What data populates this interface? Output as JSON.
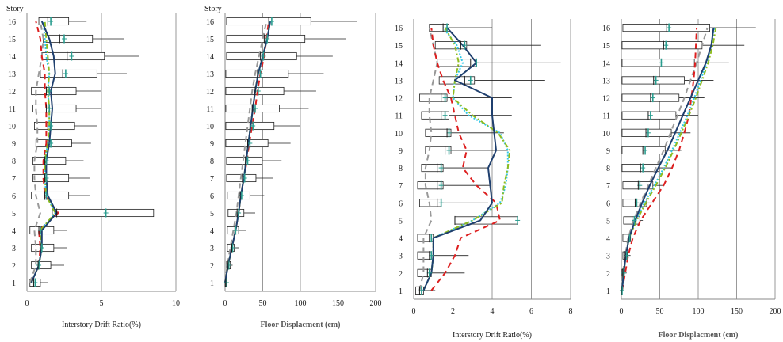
{
  "chart_data": [
    {
      "type": "box-profile",
      "story_label": "Story",
      "xlabel": "Interstory Drift Ratio(%)",
      "xlabel_style": "normal",
      "xlim": [
        0,
        10
      ],
      "xticks": [
        0,
        5,
        10
      ],
      "stories": [
        1,
        2,
        3,
        4,
        5,
        6,
        7,
        8,
        9,
        10,
        11,
        12,
        13,
        14,
        15,
        16
      ],
      "boxes": [
        {
          "story": 1,
          "q1": 0.2,
          "q3": 0.9,
          "whisker": 1.4
        },
        {
          "story": 2,
          "q1": 0.3,
          "q3": 1.6,
          "whisker": 2.5
        },
        {
          "story": 3,
          "q1": 0.3,
          "q3": 1.8,
          "whisker": 2.7
        },
        {
          "story": 4,
          "q1": 0.2,
          "q3": 1.8,
          "whisker": 2.7
        },
        {
          "story": 5,
          "q1": 1.7,
          "q3": 8.5,
          "whisker": 8.5
        },
        {
          "story": 6,
          "q1": 0.3,
          "q3": 2.8,
          "whisker": 4.2
        },
        {
          "story": 7,
          "q1": 0.4,
          "q3": 2.8,
          "whisker": 4.2
        },
        {
          "story": 8,
          "q1": 0.4,
          "q3": 2.6,
          "whisker": 3.8
        },
        {
          "story": 9,
          "q1": 0.6,
          "q3": 3.0,
          "whisker": 4.3
        },
        {
          "story": 10,
          "q1": 0.5,
          "q3": 3.2,
          "whisker": 4.7
        },
        {
          "story": 11,
          "q1": 0.4,
          "q3": 3.3,
          "whisker": 5.0
        },
        {
          "story": 12,
          "q1": 0.3,
          "q3": 3.3,
          "whisker": 5.0
        },
        {
          "story": 13,
          "q1": 0.9,
          "q3": 4.7,
          "whisker": 6.7
        },
        {
          "story": 14,
          "q1": 1.0,
          "q3": 5.2,
          "whisker": 7.5
        },
        {
          "story": 15,
          "q1": 1.1,
          "q3": 4.4,
          "whisker": 6.5
        },
        {
          "story": 16,
          "q1": 0.8,
          "q3": 2.8,
          "whisker": 4.0
        }
      ],
      "mean_markers": [
        0.55,
        0.8,
        1.0,
        0.9,
        5.3,
        1.3,
        1.3,
        1.3,
        1.6,
        1.6,
        1.5,
        1.5,
        2.6,
        3.0,
        2.5,
        1.6
      ],
      "median_markers": [
        0.45,
        0.75,
        0.9,
        0.8,
        2.0,
        1.2,
        1.2,
        1.2,
        1.4,
        1.4,
        1.3,
        1.3,
        2.4,
        2.7,
        2.2,
        1.4
      ],
      "series": [
        {
          "color": "#1f3f6e",
          "dash": "solid",
          "width": 2,
          "values": [
            0.3,
            0.8,
            1.0,
            1.0,
            2.0,
            1.4,
            1.3,
            1.3,
            1.5,
            1.6,
            1.7,
            1.6,
            1.9,
            1.8,
            1.5,
            1.0
          ]
        },
        {
          "color": "#8fbc1e",
          "dash": "6,3,2,3",
          "width": 2,
          "values": [
            0.3,
            0.8,
            1.0,
            0.9,
            1.9,
            1.3,
            1.2,
            1.2,
            1.4,
            1.5,
            1.5,
            1.4,
            1.5,
            1.4,
            1.3,
            1.2
          ]
        },
        {
          "color": "#33c8e8",
          "dash": "2,2",
          "width": 2,
          "values": [
            0.3,
            0.8,
            1.0,
            0.9,
            1.9,
            1.3,
            1.2,
            1.2,
            1.4,
            1.5,
            1.5,
            1.4,
            1.5,
            1.3,
            1.2,
            1.1
          ]
        },
        {
          "color": "#dd1f1f",
          "dash": "7,5",
          "width": 2,
          "values": [
            0.3,
            0.8,
            0.9,
            0.8,
            2.1,
            1.2,
            1.1,
            1.1,
            1.3,
            1.3,
            1.3,
            1.2,
            1.2,
            1.0,
            0.9,
            0.6
          ]
        },
        {
          "color": "#999999",
          "dash": "7,5",
          "width": 2,
          "values": [
            0.2,
            0.6,
            0.6,
            0.5,
            0.9,
            0.6,
            0.5,
            0.5,
            0.7,
            0.7,
            0.6,
            0.6,
            0.8,
            1.0,
            1.1,
            0.9
          ]
        }
      ]
    },
    {
      "type": "box-profile",
      "story_label": "Story",
      "xlabel": "Floor Displacment (cm)",
      "xlabel_style": "bold",
      "xlim": [
        0,
        200
      ],
      "xticks": [
        0,
        50,
        100,
        150,
        200
      ],
      "stories": [
        1,
        2,
        3,
        4,
        5,
        6,
        7,
        8,
        9,
        10,
        11,
        12,
        13,
        14,
        15,
        16
      ],
      "boxes": [
        {
          "story": 1,
          "q1": 0,
          "q3": 1,
          "whisker": 2
        },
        {
          "story": 2,
          "q1": 2,
          "q3": 7,
          "whisker": 10
        },
        {
          "story": 3,
          "q1": 3,
          "q3": 12,
          "whisker": 18
        },
        {
          "story": 4,
          "q1": 3,
          "q3": 18,
          "whisker": 28
        },
        {
          "story": 5,
          "q1": 4,
          "q3": 25,
          "whisker": 40
        },
        {
          "story": 6,
          "q1": 3,
          "q3": 33,
          "whisker": 52
        },
        {
          "story": 7,
          "q1": 2,
          "q3": 41,
          "whisker": 64
        },
        {
          "story": 8,
          "q1": 2,
          "q3": 49,
          "whisker": 75
        },
        {
          "story": 9,
          "q1": 1,
          "q3": 57,
          "whisker": 87
        },
        {
          "story": 10,
          "q1": 1,
          "q3": 65,
          "whisker": 99
        },
        {
          "story": 11,
          "q1": 1,
          "q3": 72,
          "whisker": 111
        },
        {
          "story": 12,
          "q1": 1,
          "q3": 78,
          "whisker": 121
        },
        {
          "story": 13,
          "q1": 1,
          "q3": 84,
          "whisker": 131
        },
        {
          "story": 14,
          "q1": 2,
          "q3": 95,
          "whisker": 143
        },
        {
          "story": 15,
          "q1": 2,
          "q3": 106,
          "whisker": 160
        },
        {
          "story": 16,
          "q1": 2,
          "q3": 114,
          "whisker": 175
        }
      ],
      "mean_markers": [
        2,
        5,
        10,
        14,
        18,
        22,
        26,
        30,
        33,
        37,
        40,
        44,
        47,
        51,
        56,
        62
      ],
      "median_markers": [
        1,
        4,
        9,
        13,
        16,
        20,
        23,
        27,
        30,
        33,
        36,
        40,
        43,
        47,
        52,
        58
      ],
      "series": [
        {
          "color": "#1f3f6e",
          "dash": "solid",
          "width": 2,
          "values": [
            0,
            4,
            9,
            14,
            18,
            21,
            25,
            28,
            31,
            34,
            37,
            40,
            44,
            50,
            56,
            60
          ]
        },
        {
          "color": "#8fbc1e",
          "dash": "6,3,2,3",
          "width": 2,
          "values": [
            0,
            4,
            9,
            14,
            18,
            21,
            25,
            28,
            31,
            34,
            37,
            40,
            44,
            50,
            56,
            60
          ]
        },
        {
          "color": "#33c8e8",
          "dash": "2,2",
          "width": 2,
          "values": [
            0,
            4,
            9,
            14,
            18,
            21,
            25,
            28,
            31,
            34,
            37,
            40,
            44,
            50,
            56,
            60
          ]
        },
        {
          "color": "#dd1f1f",
          "dash": "7,5",
          "width": 2,
          "values": [
            0,
            4,
            9,
            14,
            18,
            21,
            25,
            29,
            32,
            36,
            40,
            43,
            47,
            52,
            55,
            58
          ]
        },
        {
          "color": "#999999",
          "dash": "7,5",
          "width": 2,
          "values": [
            0,
            3,
            7,
            11,
            15,
            18,
            21,
            24,
            27,
            30,
            33,
            36,
            40,
            45,
            50,
            55
          ]
        }
      ]
    },
    {
      "type": "box-profile",
      "story_label": "",
      "xlabel": "Interstory Drift Ratio(%)",
      "xlabel_style": "normal",
      "xlim": [
        0,
        8
      ],
      "xticks": [
        0,
        2,
        4,
        6,
        8
      ],
      "stories": [
        1,
        2,
        3,
        4,
        5,
        6,
        7,
        8,
        9,
        10,
        11,
        12,
        13,
        14,
        15,
        16
      ],
      "boxes": [
        {
          "story": 1,
          "q1": 0.1,
          "q3": 0.5,
          "whisker": 1.1
        },
        {
          "story": 2,
          "q1": 0.2,
          "q3": 0.9,
          "whisker": 2.6
        },
        {
          "story": 3,
          "q1": 0.2,
          "q3": 0.9,
          "whisker": 2.8
        },
        {
          "story": 4,
          "q1": 0.2,
          "q3": 1.0,
          "whisker": 2.0
        },
        {
          "story": 5,
          "q1": 2.1,
          "q3": 5.3,
          "whisker": 5.3
        },
        {
          "story": 6,
          "q1": 0.3,
          "q3": 1.4,
          "whisker": 3.8
        },
        {
          "story": 7,
          "q1": 0.2,
          "q3": 1.5,
          "whisker": 3.9
        },
        {
          "story": 8,
          "q1": 0.4,
          "q3": 1.5,
          "whisker": 3.8
        },
        {
          "story": 9,
          "q1": 0.6,
          "q3": 1.9,
          "whisker": 4.8
        },
        {
          "story": 10,
          "q1": 0.6,
          "q3": 1.9,
          "whisker": 4.6
        },
        {
          "story": 11,
          "q1": 0.4,
          "q3": 1.8,
          "whisker": 5.0
        },
        {
          "story": 12,
          "q1": 0.3,
          "q3": 1.7,
          "whisker": 5.0
        },
        {
          "story": 13,
          "q1": 1.3,
          "q3": 3.1,
          "whisker": 6.7
        },
        {
          "story": 14,
          "q1": 1.2,
          "q3": 3.2,
          "whisker": 7.5
        },
        {
          "story": 15,
          "q1": 1.1,
          "q3": 2.7,
          "whisker": 6.5
        },
        {
          "story": 16,
          "q1": 0.8,
          "q3": 1.8,
          "whisker": 4.0
        }
      ],
      "mean_markers": [
        0.4,
        0.8,
        0.9,
        0.9,
        5.3,
        1.4,
        1.4,
        1.4,
        1.8,
        1.8,
        1.6,
        1.6,
        2.9,
        3.2,
        2.6,
        1.7
      ],
      "median_markers": [
        0.3,
        0.7,
        0.8,
        0.8,
        2.1,
        1.2,
        1.2,
        1.2,
        1.6,
        1.7,
        1.4,
        1.4,
        2.6,
        2.9,
        2.4,
        1.5
      ],
      "series": [
        {
          "color": "#1f3f6e",
          "dash": "solid",
          "width": 2,
          "values": [
            0.5,
            0.9,
            1.0,
            1.0,
            3.4,
            4.0,
            3.9,
            3.8,
            4.2,
            4.1,
            4.0,
            4.0,
            2.1,
            3.2,
            2.5,
            1.7
          ]
        },
        {
          "color": "#8fbc1e",
          "dash": "6,3,2,3",
          "width": 2,
          "values": [
            0.5,
            0.9,
            1.0,
            1.0,
            3.0,
            4.5,
            4.6,
            4.8,
            4.9,
            4.3,
            3.0,
            2.0,
            2.1,
            2.3,
            2.1,
            1.6
          ]
        },
        {
          "color": "#33c8e8",
          "dash": "2,2",
          "width": 2,
          "values": [
            0.5,
            0.9,
            1.0,
            1.0,
            3.0,
            4.4,
            4.7,
            4.8,
            4.8,
            4.4,
            2.8,
            2.0,
            2.1,
            2.5,
            2.2,
            1.5
          ]
        },
        {
          "color": "#dd1f1f",
          "dash": "7,5",
          "width": 2,
          "values": [
            0.9,
            1.6,
            2.1,
            2.4,
            4.4,
            4.2,
            3.2,
            2.5,
            2.7,
            2.3,
            2.1,
            1.9,
            1.5,
            1.2,
            1.0,
            0.9
          ]
        },
        {
          "color": "#999999",
          "dash": "7,5",
          "width": 2,
          "values": [
            0.3,
            0.5,
            0.5,
            0.5,
            0.9,
            0.8,
            0.6,
            0.6,
            0.8,
            0.9,
            0.8,
            0.8,
            1.0,
            1.2,
            1.0,
            0.8
          ]
        }
      ]
    },
    {
      "type": "box-profile",
      "story_label": "",
      "xlabel": "Floor Displacment (cm)",
      "xlabel_style": "bold",
      "xlim": [
        0,
        200
      ],
      "xticks": [
        0,
        50,
        100,
        150,
        200
      ],
      "stories": [
        1,
        2,
        3,
        4,
        5,
        6,
        7,
        8,
        9,
        10,
        11,
        12,
        13,
        14,
        15,
        16
      ],
      "boxes": [
        {
          "story": 1,
          "q1": 0,
          "q3": 1,
          "whisker": 2
        },
        {
          "story": 2,
          "q1": 1,
          "q3": 4,
          "whisker": 7
        },
        {
          "story": 3,
          "q1": 2,
          "q3": 8,
          "whisker": 12
        },
        {
          "story": 4,
          "q1": 2,
          "q3": 12,
          "whisker": 20
        },
        {
          "story": 5,
          "q1": 3,
          "q3": 24,
          "whisker": 28
        },
        {
          "story": 6,
          "q1": 2,
          "q3": 33,
          "whisker": 42
        },
        {
          "story": 7,
          "q1": 2,
          "q3": 41,
          "whisker": 54
        },
        {
          "story": 8,
          "q1": 1,
          "q3": 49,
          "whisker": 66
        },
        {
          "story": 9,
          "q1": 1,
          "q3": 57,
          "whisker": 78
        },
        {
          "story": 10,
          "q1": 1,
          "q3": 65,
          "whisker": 90
        },
        {
          "story": 11,
          "q1": 1,
          "q3": 71,
          "whisker": 100
        },
        {
          "story": 12,
          "q1": 1,
          "q3": 75,
          "whisker": 108
        },
        {
          "story": 13,
          "q1": 1,
          "q3": 82,
          "whisker": 120
        },
        {
          "story": 14,
          "q1": 1,
          "q3": 95,
          "whisker": 140
        },
        {
          "story": 15,
          "q1": 1,
          "q3": 105,
          "whisker": 160
        },
        {
          "story": 16,
          "q1": 2,
          "q3": 115,
          "whisker": 175
        }
      ],
      "mean_markers": [
        1,
        3,
        7,
        11,
        17,
        20,
        24,
        28,
        31,
        35,
        38,
        41,
        45,
        52,
        58,
        62
      ],
      "median_markers": [
        0,
        2,
        5,
        9,
        14,
        18,
        22,
        25,
        28,
        32,
        35,
        38,
        42,
        49,
        55,
        59
      ],
      "series": [
        {
          "color": "#1f3f6e",
          "dash": "solid",
          "width": 2,
          "values": [
            1,
            3,
            6,
            10,
            18,
            27,
            37,
            48,
            60,
            70,
            80,
            90,
            100,
            110,
            117,
            120
          ]
        },
        {
          "color": "#8fbc1e",
          "dash": "6,3,2,3",
          "width": 2,
          "values": [
            1,
            3,
            6,
            10,
            20,
            32,
            45,
            57,
            68,
            78,
            88,
            97,
            105,
            113,
            119,
            123
          ]
        },
        {
          "color": "#33c8e8",
          "dash": "2,2",
          "width": 2,
          "values": [
            1,
            3,
            6,
            10,
            19,
            30,
            43,
            55,
            66,
            76,
            86,
            95,
            103,
            111,
            117,
            121
          ]
        },
        {
          "color": "#dd1f1f",
          "dash": "7,5",
          "width": 2,
          "values": [
            1,
            5,
            9,
            15,
            25,
            40,
            55,
            66,
            75,
            82,
            88,
            91,
            94,
            96,
            97,
            98
          ]
        },
        {
          "color": "#999999",
          "dash": "7,5",
          "width": 2,
          "values": [
            0,
            2,
            5,
            9,
            16,
            25,
            35,
            45,
            55,
            64,
            73,
            82,
            90,
            98,
            105,
            112
          ]
        }
      ]
    }
  ]
}
